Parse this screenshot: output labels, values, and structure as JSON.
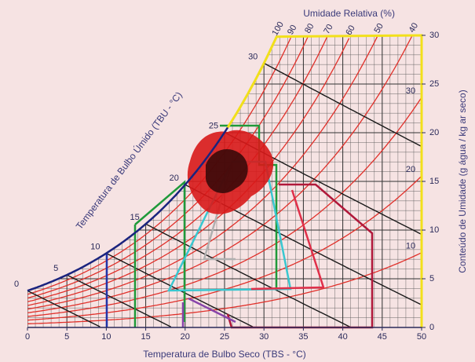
{
  "chart_data": {
    "type": "psychrometric",
    "x_label": "Temperatura de Bulbo Seco (TBS - °C)",
    "y_label": "Conteúdo de Umidade (g água / kg ar seco)",
    "rh_label": "Umidade Relativa (%)",
    "wb_label": "Temperatura de Bulbo Úmido (TBU - °C)",
    "xlim": [
      0,
      50
    ],
    "xticks": [
      0,
      5,
      10,
      15,
      20,
      25,
      30,
      35,
      40,
      45,
      50
    ],
    "ylim": [
      0,
      30
    ],
    "yticks": [
      0,
      5,
      10,
      15,
      20,
      25,
      30
    ],
    "rh_curves": [
      100,
      90,
      80,
      70,
      60,
      50,
      40,
      30,
      20,
      10
    ],
    "wet_bulb_lines": [
      0,
      5,
      10,
      15,
      20,
      25,
      30
    ],
    "rh_color": "#e0302a",
    "wb_color": "#1a1a1a",
    "grid": true
  }
}
